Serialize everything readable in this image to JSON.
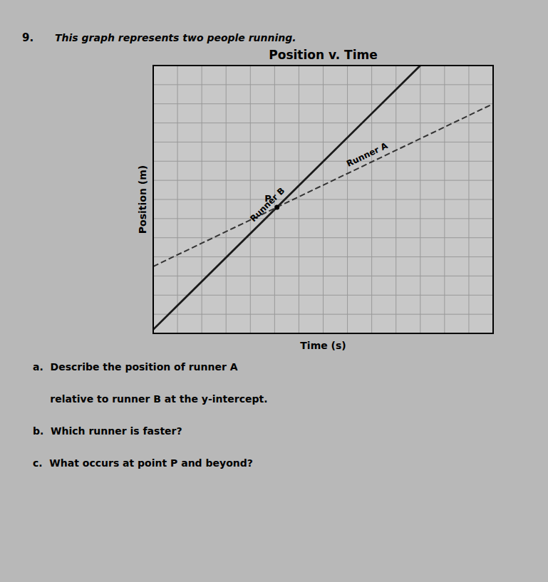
{
  "chart_data": {
    "type": "line",
    "title": "Position v. Time",
    "xlabel": "Time (s)",
    "ylabel": "Position (m)",
    "xlim": [
      0,
      14
    ],
    "ylim": [
      0,
      14
    ],
    "xticks": [
      0,
      1,
      2,
      3,
      4,
      5,
      6,
      7,
      8,
      9,
      10,
      11,
      12,
      13,
      14
    ],
    "yticks": [
      0,
      1,
      2,
      3,
      4,
      5,
      6,
      7,
      8,
      9,
      10,
      11,
      12,
      13,
      14
    ],
    "grid": true,
    "tick_labels": false,
    "series": [
      {
        "name": "Runner B",
        "color": "#1a1a1a",
        "line_style": "solid",
        "x": [
          0,
          11
        ],
        "values": [
          0.2,
          14
        ]
      },
      {
        "name": "Runner A",
        "color": "#333333",
        "line_style": "dashed",
        "x": [
          0,
          14
        ],
        "values": [
          3.5,
          12.0
        ]
      }
    ],
    "annotations": [
      {
        "text": "9."
      },
      {
        "text": "This graph represents two people running."
      },
      {
        "text": "P",
        "x": 5.0972918756,
        "y": 6.594784353
      },
      {
        "text": "a.  Describe the position of runner A"
      },
      {
        "text": "     relative to runner B at the y-intercept."
      },
      {
        "text": "b.  Which runner is faster?"
      },
      {
        "text": "c.  What occurs at point P and beyond?"
      }
    ]
  }
}
